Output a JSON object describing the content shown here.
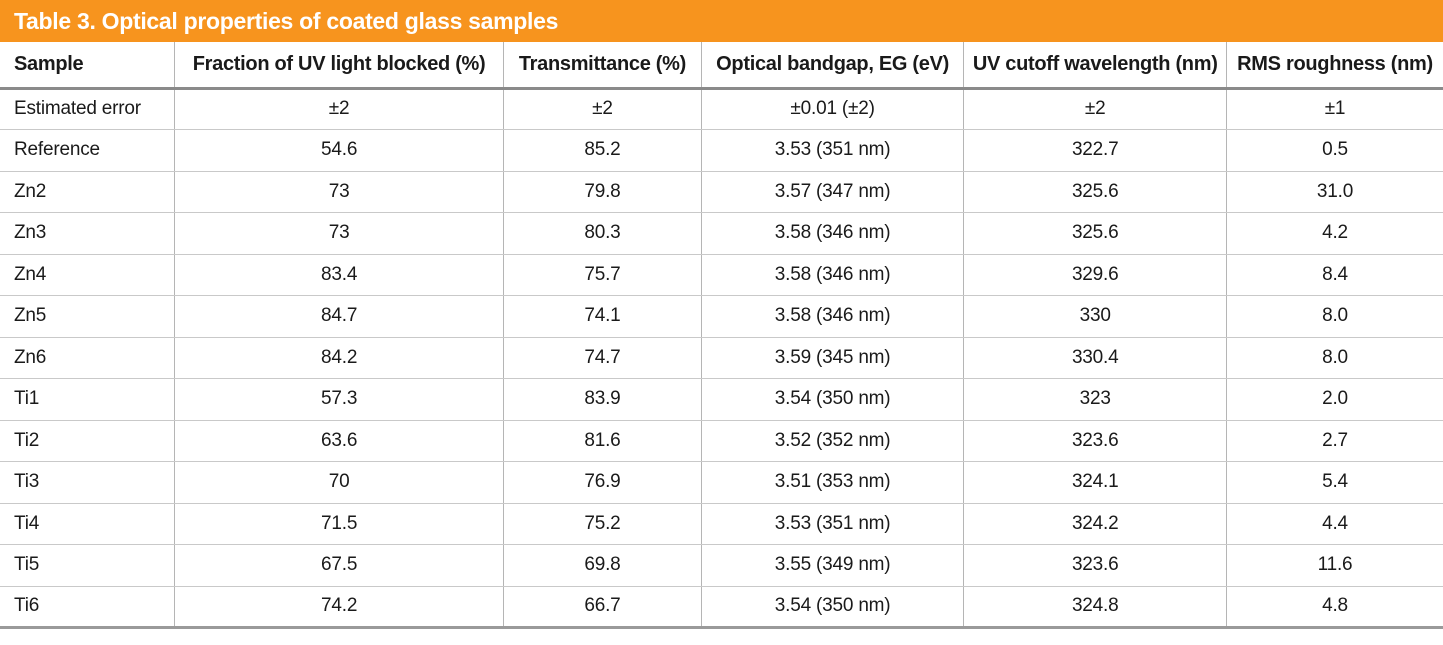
{
  "title": "Table 3. Optical properties of coated glass samples",
  "colors": {
    "accent": "#F7941E",
    "heavy_rule": "#8a8a8a",
    "light_rule": "#c9c9c9"
  },
  "chart_data": {
    "type": "table",
    "title": "Table 3. Optical properties of coated glass samples",
    "columns": [
      "Sample",
      "Fraction of UV light blocked (%)",
      "Transmittance (%)",
      "Optical bandgap, EG (eV)",
      "UV cutoff wavelength (nm)",
      "RMS roughness (nm)"
    ],
    "rows": [
      [
        "Estimated error",
        "±2",
        "±2",
        "±0.01 (±2)",
        "±2",
        "±1"
      ],
      [
        "Reference",
        "54.6",
        "85.2",
        "3.53 (351 nm)",
        "322.7",
        "0.5"
      ],
      [
        "Zn2",
        "73",
        "79.8",
        "3.57 (347 nm)",
        "325.6",
        "31.0"
      ],
      [
        "Zn3",
        "73",
        "80.3",
        "3.58 (346 nm)",
        "325.6",
        "4.2"
      ],
      [
        "Zn4",
        "83.4",
        "75.7",
        "3.58 (346 nm)",
        "329.6",
        "8.4"
      ],
      [
        "Zn5",
        "84.7",
        "74.1",
        "3.58 (346 nm)",
        "330",
        "8.0"
      ],
      [
        "Zn6",
        "84.2",
        "74.7",
        "3.59 (345 nm)",
        "330.4",
        "8.0"
      ],
      [
        "Ti1",
        "57.3",
        "83.9",
        "3.54 (350 nm)",
        "323",
        "2.0"
      ],
      [
        "Ti2",
        "63.6",
        "81.6",
        "3.52 (352 nm)",
        "323.6",
        "2.7"
      ],
      [
        "Ti3",
        "70",
        "76.9",
        "3.51 (353 nm)",
        "324.1",
        "5.4"
      ],
      [
        "Ti4",
        "71.5",
        "75.2",
        "3.53 (351 nm)",
        "324.2",
        "4.4"
      ],
      [
        "Ti5",
        "67.5",
        "69.8",
        "3.55 (349 nm)",
        "323.6",
        "11.6"
      ],
      [
        "Ti6",
        "74.2",
        "66.7",
        "3.54 (350 nm)",
        "324.8",
        "4.8"
      ]
    ]
  }
}
